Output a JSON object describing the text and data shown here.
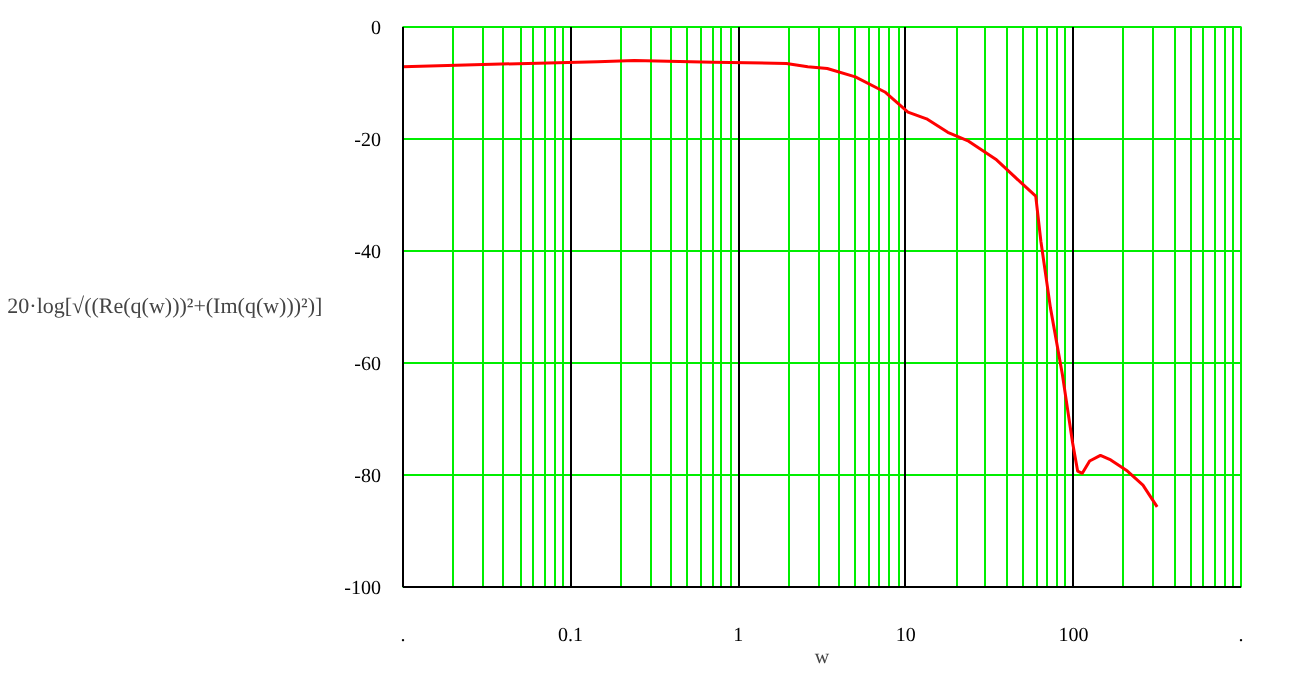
{
  "chart_data": {
    "type": "line",
    "xlabel": "w",
    "ylabel": "20·log[√((Re(q(w)))²+(Im(q(w)))²)]",
    "log": "x",
    "grid": true,
    "marker": "none",
    "line_style": "solid",
    "xlim": [
      0.01,
      1000
    ],
    "xticks": [
      {
        "value": 0.01,
        "label": "."
      },
      0.1,
      1,
      10,
      100,
      {
        "value": 1000,
        "label": "."
      }
    ],
    "ylim": [
      -100,
      0
    ],
    "yticks": [
      -100,
      -80,
      -60,
      -40,
      -20,
      0
    ],
    "series": [
      {
        "color": "#ff0000",
        "x": [
          0.01,
          0.03,
          0.145,
          0.24,
          0.71,
          1.94,
          2.6,
          3.4,
          5.0,
          7.5,
          10.3,
          13.3,
          17.8,
          23.7,
          34.4,
          48.7,
          59.6,
          64,
          73,
          86,
          98.6,
          106,
          113,
          125,
          145,
          167,
          210,
          260,
          316
        ],
        "values": [
          -7.1,
          -6.7,
          -6.2,
          -6.0,
          -6.3,
          -6.5,
          -7.1,
          -7.4,
          -8.9,
          -11.6,
          -15.2,
          -16.4,
          -18.8,
          -20.4,
          -23.6,
          -27.8,
          -30.2,
          -38.3,
          -50.2,
          -62.1,
          -74,
          -79.3,
          -79.7,
          -77.5,
          -76.5,
          -77.3,
          -79.3,
          -81.8,
          -85.7
        ]
      }
    ]
  }
}
